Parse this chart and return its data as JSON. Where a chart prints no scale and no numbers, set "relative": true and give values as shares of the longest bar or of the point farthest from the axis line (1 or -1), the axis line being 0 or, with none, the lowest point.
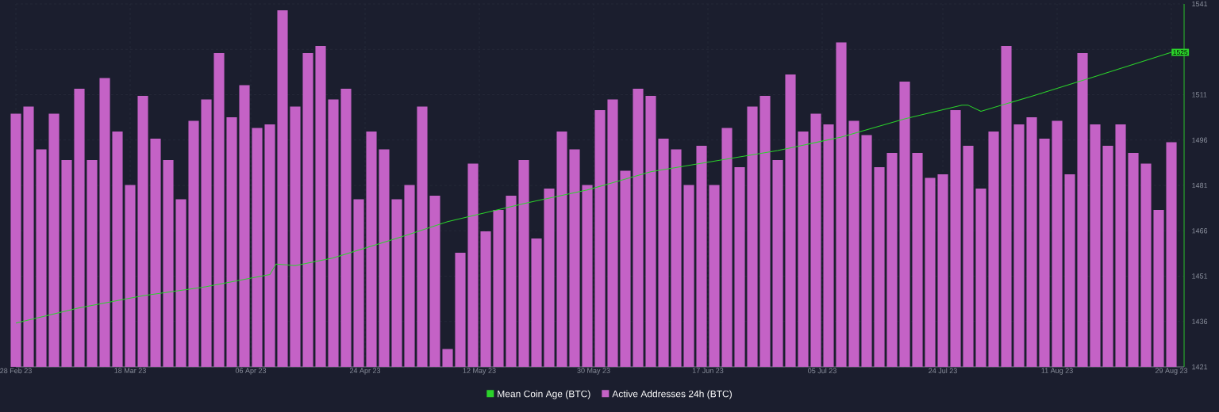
{
  "chart_data": [
    {
      "type": "bar",
      "relative": true,
      "tick_labels": false,
      "legend": "bottom",
      "x": [
        "2023-02-28",
        "2023-03-02",
        "2023-03-04",
        "2023-03-06",
        "2023-03-08",
        "2023-03-10",
        "2023-03-12",
        "2023-03-14",
        "2023-03-16",
        "2023-03-18",
        "2023-03-20",
        "2023-03-22",
        "2023-03-24",
        "2023-03-26",
        "2023-03-28",
        "2023-03-30",
        "2023-04-01",
        "2023-04-03",
        "2023-04-05",
        "2023-04-07",
        "2023-04-09",
        "2023-04-11",
        "2023-04-13",
        "2023-04-15",
        "2023-04-17",
        "2023-04-19",
        "2023-04-21",
        "2023-04-23",
        "2023-04-25",
        "2023-04-27",
        "2023-04-29",
        "2023-05-01",
        "2023-05-03",
        "2023-05-05",
        "2023-05-07",
        "2023-05-09",
        "2023-05-11",
        "2023-05-13",
        "2023-05-15",
        "2023-05-17",
        "2023-05-19",
        "2023-05-21",
        "2023-05-23",
        "2023-05-25",
        "2023-05-27",
        "2023-05-29",
        "2023-05-31",
        "2023-06-02",
        "2023-06-04",
        "2023-06-06",
        "2023-06-08",
        "2023-06-10",
        "2023-06-12",
        "2023-06-14",
        "2023-06-16",
        "2023-06-18",
        "2023-06-20",
        "2023-06-22",
        "2023-06-24",
        "2023-06-26",
        "2023-06-28",
        "2023-06-30",
        "2023-07-02",
        "2023-07-04",
        "2023-07-06",
        "2023-07-08",
        "2023-07-10",
        "2023-07-12",
        "2023-07-14",
        "2023-07-16",
        "2023-07-18",
        "2023-07-20",
        "2023-07-22",
        "2023-07-24",
        "2023-07-26",
        "2023-07-28",
        "2023-07-30",
        "2023-08-01",
        "2023-08-03",
        "2023-08-05",
        "2023-08-07",
        "2023-08-09",
        "2023-08-11",
        "2023-08-13",
        "2023-08-15",
        "2023-08-17",
        "2023-08-19",
        "2023-08-21",
        "2023-08-23",
        "2023-08-25",
        "2023-08-27",
        "2023-08-29"
      ],
      "xlim": [
        "2023-02-28",
        "2023-08-31"
      ],
      "series": [
        {
          "name": "Active Addresses 24h (BTC)",
          "color": "#c462c6",
          "values": [
            0.71,
            0.73,
            0.61,
            0.71,
            0.58,
            0.78,
            0.58,
            0.81,
            0.66,
            0.51,
            0.76,
            0.64,
            0.58,
            0.47,
            0.69,
            0.75,
            0.88,
            0.7,
            0.79,
            0.67,
            0.68,
            1.0,
            0.73,
            0.88,
            0.9,
            0.75,
            0.78,
            0.47,
            0.66,
            0.61,
            0.47,
            0.51,
            0.73,
            0.48,
            0.05,
            0.32,
            0.57,
            0.38,
            0.44,
            0.48,
            0.58,
            0.36,
            0.5,
            0.66,
            0.61,
            0.51,
            0.72,
            0.75,
            0.55,
            0.78,
            0.76,
            0.64,
            0.61,
            0.51,
            0.62,
            0.51,
            0.67,
            0.56,
            0.73,
            0.76,
            0.58,
            0.82,
            0.66,
            0.71,
            0.68,
            0.91,
            0.69,
            0.65,
            0.56,
            0.6,
            0.8,
            0.6,
            0.53,
            0.54,
            0.72,
            0.62,
            0.5,
            0.66,
            0.9,
            0.68,
            0.7,
            0.64,
            0.69,
            0.54,
            0.88,
            0.68,
            0.62,
            0.68,
            0.6,
            0.57,
            0.44,
            0.63
          ]
        }
      ]
    },
    {
      "type": "line",
      "grid": true,
      "xlim": [
        "2023-02-28",
        "2023-08-31"
      ],
      "xticks": [
        {
          "value": "2023-02-28",
          "label": "28 Feb 23"
        },
        {
          "value": "2023-03-18",
          "label": "18 Mar 23"
        },
        {
          "value": "2023-04-06",
          "label": "06 Apr 23"
        },
        {
          "value": "2023-04-24",
          "label": "24 Apr 23"
        },
        {
          "value": "2023-05-12",
          "label": "12 May 23"
        },
        {
          "value": "2023-05-30",
          "label": "30 May 23"
        },
        {
          "value": "2023-06-17",
          "label": "17 Jun 23"
        },
        {
          "value": "2023-07-05",
          "label": "05 Jul 23"
        },
        {
          "value": "2023-07-24",
          "label": "24 Jul 23"
        },
        {
          "value": "2023-08-11",
          "label": "11 Aug 23"
        },
        {
          "value": "2023-08-29",
          "label": "29 Aug 23"
        }
      ],
      "y2lim": [
        1421,
        1541
      ],
      "y2ticks": [
        1421,
        1436,
        1451,
        1466,
        1481,
        1496,
        1511,
        {
          "value": 1526,
          "label": null
        },
        1541
      ],
      "series": [
        {
          "name": "Mean Coin Age (BTC)",
          "axis": "y2",
          "color": "#2bd22b",
          "x": [
            "2023-02-28",
            "2023-03-10",
            "2023-03-20",
            "2023-03-30",
            "2023-04-09",
            "2023-04-10",
            "2023-04-13",
            "2023-04-19",
            "2023-04-29",
            "2023-05-07",
            "2023-05-19",
            "2023-05-29",
            "2023-06-08",
            "2023-06-18",
            "2023-06-28",
            "2023-07-08",
            "2023-07-18",
            "2023-07-27",
            "2023-07-28",
            "2023-07-30",
            "2023-08-07",
            "2023-08-17",
            "2023-08-29"
          ],
          "values": [
            1435.5,
            1440.5,
            1444.5,
            1447.5,
            1451.5,
            1455,
            1454.5,
            1457,
            1463.5,
            1469,
            1475,
            1479.5,
            1485.5,
            1489,
            1492.5,
            1497,
            1503,
            1507.5,
            1507.5,
            1505.5,
            1510.5,
            1517,
            1525
          ],
          "value_labels": [
            null,
            null,
            null,
            null,
            null,
            null,
            null,
            null,
            null,
            null,
            null,
            null,
            null,
            null,
            null,
            null,
            null,
            null,
            null,
            null,
            null,
            null,
            "1525"
          ]
        }
      ]
    }
  ]
}
